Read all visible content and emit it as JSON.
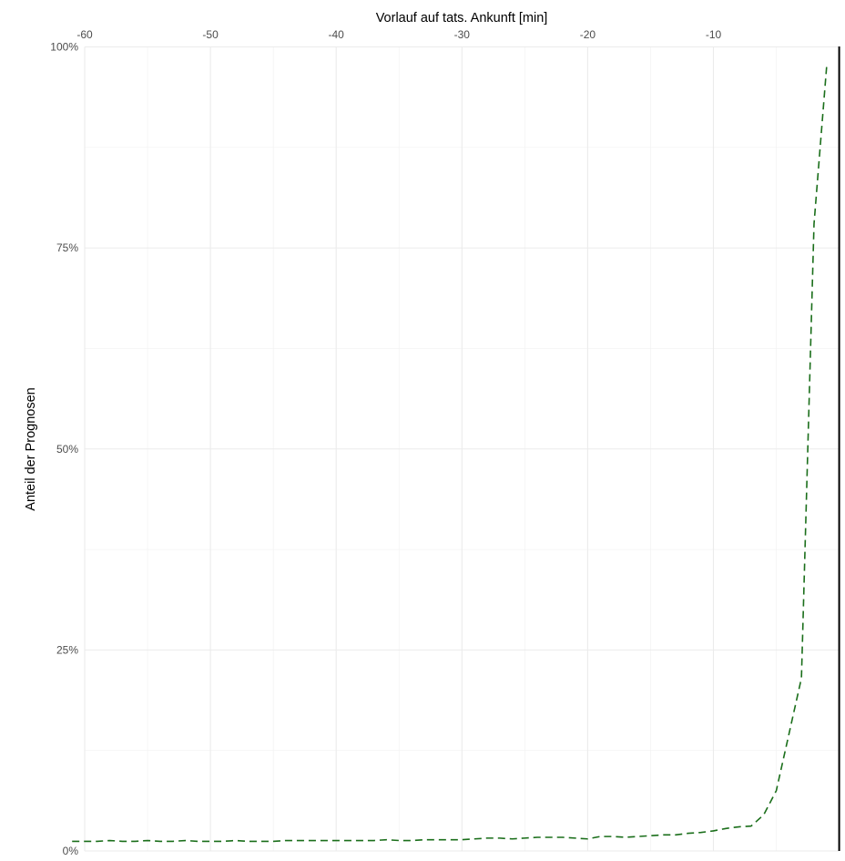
{
  "chart_data": {
    "type": "line",
    "title": "",
    "xlabel": "Vorlauf auf tats. Ankunft [min]",
    "ylabel": "Anteil der Prognosen",
    "xaxis_position": "top",
    "xlim": [
      -60,
      0
    ],
    "ylim": [
      0,
      100
    ],
    "x_ticks": [
      -60,
      -50,
      -40,
      -30,
      -20,
      -10
    ],
    "x_tick_labels": [
      "-60",
      "-50",
      "-40",
      "-30",
      "-20",
      "-10"
    ],
    "y_ticks": [
      0,
      25,
      50,
      75,
      100
    ],
    "y_tick_labels": [
      "0%",
      "25%",
      "50%",
      "75%",
      "100%"
    ],
    "grid": true,
    "legend": "none",
    "reference_line": {
      "x": 0,
      "color": "#000000"
    },
    "series": [
      {
        "color": "#1a6e1a",
        "linestyle": "dashed",
        "x": [
          -61,
          -60,
          -59,
          -58,
          -57,
          -56,
          -55,
          -54,
          -53,
          -52,
          -51,
          -50,
          -49,
          -48,
          -47,
          -46,
          -45,
          -44,
          -43,
          -42,
          -41,
          -40,
          -39,
          -38,
          -37,
          -36,
          -35,
          -34,
          -33,
          -32,
          -31,
          -30,
          -29,
          -28,
          -27,
          -26,
          -25,
          -24,
          -23,
          -22,
          -21,
          -20,
          -19,
          -18,
          -17,
          -16,
          -15,
          -14,
          -13,
          -12,
          -11,
          -10,
          -9,
          -8,
          -7,
          -6,
          -5,
          -4,
          -3,
          -2,
          -1
        ],
        "y": [
          1.2,
          1.2,
          1.2,
          1.3,
          1.2,
          1.2,
          1.3,
          1.2,
          1.2,
          1.3,
          1.2,
          1.2,
          1.2,
          1.3,
          1.2,
          1.2,
          1.2,
          1.3,
          1.3,
          1.3,
          1.3,
          1.3,
          1.3,
          1.3,
          1.3,
          1.4,
          1.3,
          1.3,
          1.4,
          1.4,
          1.4,
          1.4,
          1.5,
          1.6,
          1.6,
          1.5,
          1.6,
          1.7,
          1.7,
          1.7,
          1.6,
          1.5,
          1.8,
          1.8,
          1.7,
          1.8,
          1.9,
          2.0,
          2.0,
          2.2,
          2.3,
          2.5,
          2.8,
          3.0,
          3.1,
          4.5,
          7.5,
          14.5,
          21.5,
          78.0,
          97.5
        ]
      }
    ]
  }
}
